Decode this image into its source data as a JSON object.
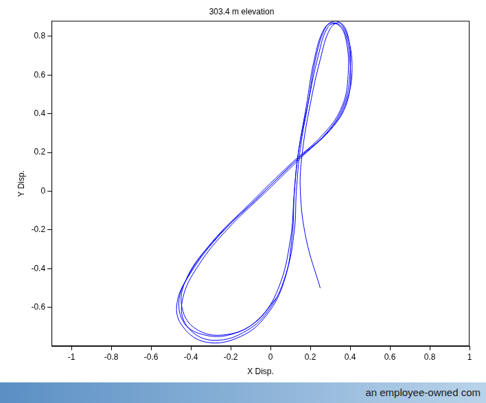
{
  "chart_data": {
    "type": "line",
    "title": "303.4 m elevation",
    "x_label": "X Disp.",
    "y_label": "Y Disp.",
    "annotations": [
      "an employee-owned com"
    ],
    "color": "#0000ff",
    "grid": false,
    "marker": "none",
    "line_style": "solid",
    "xlim": [
      -1.1,
      1
    ],
    "xticks": [
      -1,
      -0.8,
      -0.6,
      -0.4,
      -0.2,
      0,
      0.2,
      0.4,
      0.6,
      0.8,
      1
    ],
    "ylim": [
      -0.8,
      0.88
    ],
    "yticks": [
      -0.6,
      -0.4,
      -0.2,
      0,
      0.2,
      0.4,
      0.6,
      0.8
    ],
    "x": [
      0.25,
      0.18,
      0.15,
      0.16,
      0.2,
      0.25,
      0.3,
      0.35,
      0.39,
      0.4,
      0.37,
      0.28,
      0.12,
      -0.08,
      -0.28,
      -0.42,
      -0.46,
      -0.4,
      -0.28,
      -0.12,
      0.0,
      0.08,
      0.12,
      0.13,
      0.15,
      0.19,
      0.23,
      0.28,
      0.33,
      0.38,
      0.41,
      0.38,
      0.3,
      0.14,
      -0.05,
      -0.25,
      -0.4,
      -0.47,
      -0.44,
      -0.32,
      -0.15,
      -0.02,
      0.07,
      0.11,
      0.12,
      0.14,
      0.18,
      0.22,
      0.27,
      0.32,
      0.37,
      0.4,
      0.39,
      0.32,
      0.16,
      -0.02,
      -0.22,
      -0.36,
      -0.44,
      -0.43,
      -0.34,
      -0.2,
      -0.06,
      0.04,
      0.1,
      0.12,
      0.14,
      0.19,
      0.24,
      0.29,
      0.34,
      0.38,
      0.39,
      0.36,
      0.27,
      0.1,
      -0.1,
      -0.3,
      -0.43,
      -0.44,
      -0.36,
      -0.22,
      -0.08,
      0.03
    ],
    "values": [
      -0.5,
      -0.25,
      0.0,
      0.2,
      0.45,
      0.68,
      0.84,
      0.87,
      0.8,
      0.62,
      0.45,
      0.3,
      0.15,
      -0.05,
      -0.25,
      -0.45,
      -0.6,
      -0.72,
      -0.77,
      -0.72,
      -0.6,
      -0.42,
      -0.2,
      0.0,
      0.22,
      0.46,
      0.7,
      0.85,
      0.88,
      0.82,
      0.64,
      0.46,
      0.32,
      0.17,
      -0.02,
      -0.22,
      -0.42,
      -0.58,
      -0.7,
      -0.78,
      -0.75,
      -0.64,
      -0.46,
      -0.22,
      0.0,
      0.2,
      0.44,
      0.68,
      0.84,
      0.87,
      0.83,
      0.66,
      0.48,
      0.34,
      0.18,
      0.0,
      -0.2,
      -0.38,
      -0.55,
      -0.68,
      -0.74,
      -0.74,
      -0.66,
      -0.5,
      -0.25,
      0.0,
      0.2,
      0.46,
      0.7,
      0.85,
      0.86,
      0.78,
      0.6,
      0.44,
      0.3,
      0.14,
      -0.06,
      -0.27,
      -0.47,
      -0.62,
      -0.72,
      -0.74,
      -0.68,
      -0.55
    ]
  }
}
